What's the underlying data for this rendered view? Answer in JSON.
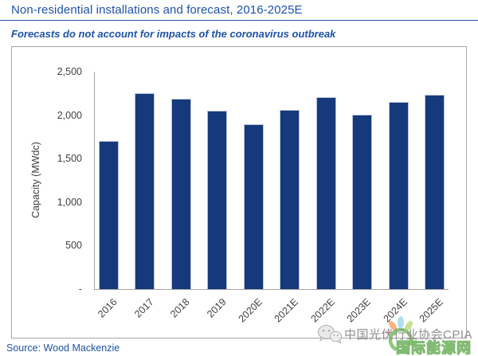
{
  "header": {
    "title": "Non-residential installations and forecast, 2016-2025E",
    "subtitle": "Forecasts do not account for impacts of the coronavirus outbreak"
  },
  "chart_data": {
    "type": "bar",
    "title": "Non-residential installations and forecast, 2016-2025E",
    "categories": [
      "2016",
      "2017",
      "2018",
      "2019",
      "2020E",
      "2021E",
      "2022E",
      "2023E",
      "2024E",
      "2025E"
    ],
    "values": [
      1700,
      2250,
      2190,
      2050,
      1900,
      2060,
      2210,
      2010,
      2150,
      2230
    ],
    "xlabel": "",
    "ylabel": "Capacity (MWdc)",
    "ylim": [
      0,
      2500
    ],
    "ytick_step": 500,
    "yticks": [
      0,
      500,
      1000,
      1500,
      2000,
      2500
    ],
    "ytick_labels": [
      "-",
      "500",
      "1,000",
      "1,500",
      "2,000",
      "2,500"
    ],
    "grid": false,
    "legend": "none",
    "bar_color": "#15397a"
  },
  "footer": {
    "source": "Source: Wood Mackenzie"
  },
  "watermark": {
    "account_text": "中国光伏行业协会CPIA",
    "site_text": "国际能源网"
  },
  "colors": {
    "accent_blue": "#1d53a6",
    "bar_fill": "#15397a",
    "bar_edge": "#b7c3d9",
    "axis_gray": "#a6a6a6",
    "tick_text": "#3f3f3f",
    "watermark_gray": "#8f8f8f",
    "watermark_green": "#5aa546"
  }
}
